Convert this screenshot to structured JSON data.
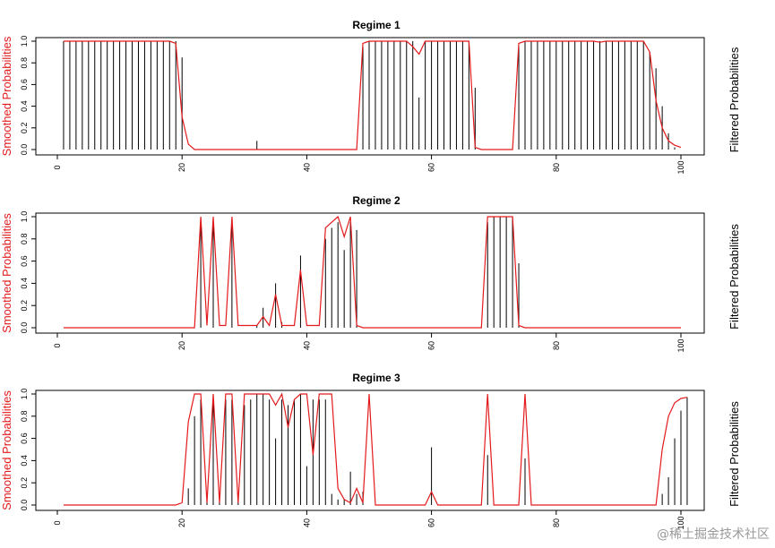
{
  "colors": {
    "smoothed": "#e31a1c",
    "filtered": "#000000",
    "axis": "#000000"
  },
  "watermark": "@稀土掘金技术社区",
  "chart_data": [
    {
      "type": "line",
      "title": "Regime 1",
      "ylabel_left": "Smoothed Probabilities",
      "ylabel_right": "Filtered Probabilities",
      "xlim": [
        0,
        100
      ],
      "ylim": [
        0,
        1
      ],
      "xticks": [
        0,
        20,
        40,
        60,
        80,
        100
      ],
      "yticks": [
        0.0,
        0.2,
        0.4,
        0.6,
        0.8,
        1.0
      ],
      "series": [
        {
          "style": "vertical-lines",
          "color": "#000000",
          "values": [
            1,
            1,
            1,
            1,
            1,
            1,
            1,
            1,
            1,
            1,
            1,
            1,
            1,
            1,
            1,
            1,
            1,
            1,
            1,
            0.85,
            0,
            0,
            0,
            0,
            0,
            0,
            0,
            0,
            0,
            0,
            0,
            0.08,
            0,
            0,
            0,
            0,
            0,
            0,
            0,
            0,
            0,
            0,
            0,
            0,
            0,
            0,
            0,
            0,
            0.95,
            1,
            1,
            1,
            1,
            1,
            1,
            1,
            1,
            0.48,
            1,
            1,
            1,
            1,
            1,
            1,
            1,
            1,
            0.57,
            0,
            0,
            0,
            0,
            0,
            0,
            0.95,
            1,
            1,
            1,
            1,
            1,
            1,
            1,
            1,
            1,
            1,
            1,
            1,
            1,
            1,
            1,
            1,
            1,
            1,
            1,
            1,
            0.9,
            0.75,
            0.4,
            0.15,
            0.02
          ]
        },
        {
          "style": "line",
          "color": "#e31a1c",
          "values": [
            1,
            1,
            1,
            1,
            1,
            1,
            1,
            1,
            1,
            1,
            1,
            1,
            1,
            1,
            1,
            1,
            1,
            1,
            0.98,
            0.3,
            0.05,
            0,
            0,
            0,
            0,
            0,
            0,
            0,
            0,
            0,
            0,
            0,
            0,
            0,
            0,
            0,
            0,
            0,
            0,
            0,
            0,
            0,
            0,
            0,
            0,
            0,
            0,
            0,
            0.98,
            1,
            1,
            1,
            1,
            1,
            1,
            1,
            0.95,
            0.88,
            1,
            1,
            1,
            1,
            1,
            1,
            1,
            1,
            0.02,
            0,
            0,
            0,
            0,
            0,
            0,
            0.98,
            1,
            1,
            1,
            1,
            1,
            1,
            1,
            1,
            1,
            1,
            1,
            1,
            0.99,
            1,
            1,
            1,
            1,
            1,
            1,
            1,
            0.9,
            0.45,
            0.2,
            0.08,
            0.04,
            0.02
          ]
        }
      ]
    },
    {
      "type": "line",
      "title": "Regime 2",
      "ylabel_left": "Smoothed Probabilities",
      "ylabel_right": "Filtered Probabilities",
      "xlim": [
        0,
        100
      ],
      "ylim": [
        0,
        1
      ],
      "xticks": [
        0,
        20,
        40,
        60,
        80,
        100
      ],
      "yticks": [
        0.0,
        0.2,
        0.4,
        0.6,
        0.8,
        1.0
      ],
      "series": [
        {
          "style": "vertical-lines",
          "color": "#000000",
          "values": [
            0,
            0,
            0,
            0,
            0,
            0,
            0,
            0,
            0,
            0,
            0,
            0,
            0,
            0,
            0,
            0,
            0,
            0,
            0,
            0,
            0,
            0,
            0.92,
            0,
            0.93,
            0,
            0,
            0.92,
            0,
            0,
            0,
            0.02,
            0.18,
            0,
            0.4,
            0.05,
            0,
            0,
            0.65,
            0,
            0,
            0,
            0.8,
            0.9,
            0.95,
            0.7,
            0.95,
            0.88,
            0,
            0,
            0,
            0,
            0,
            0,
            0,
            0,
            0,
            0,
            0,
            0,
            0,
            0,
            0,
            0,
            0,
            0,
            0,
            0,
            0.95,
            1,
            1,
            1,
            1,
            0.58,
            0,
            0,
            0,
            0,
            0,
            0,
            0,
            0,
            0,
            0,
            0,
            0,
            0,
            0,
            0,
            0,
            0,
            0,
            0,
            0,
            0,
            0,
            0,
            0,
            0,
            0
          ]
        },
        {
          "style": "line",
          "color": "#e31a1c",
          "values": [
            0,
            0,
            0,
            0,
            0,
            0,
            0,
            0,
            0,
            0,
            0,
            0,
            0,
            0,
            0,
            0,
            0,
            0,
            0,
            0,
            0,
            0,
            1,
            0.02,
            1,
            0.02,
            0.02,
            1,
            0.02,
            0.02,
            0.02,
            0.02,
            0.1,
            0.02,
            0.3,
            0.02,
            0.02,
            0.02,
            0.52,
            0.02,
            0.02,
            0.02,
            0.9,
            0.95,
            1,
            0.82,
            1,
            0.02,
            0,
            0,
            0,
            0,
            0,
            0,
            0,
            0,
            0,
            0,
            0,
            0,
            0,
            0,
            0,
            0,
            0,
            0,
            0,
            0,
            1,
            1,
            1,
            1,
            1,
            0.02,
            0,
            0,
            0,
            0,
            0,
            0,
            0,
            0,
            0,
            0,
            0,
            0,
            0,
            0,
            0,
            0,
            0,
            0,
            0,
            0,
            0,
            0,
            0,
            0,
            0,
            0
          ]
        }
      ]
    },
    {
      "type": "line",
      "title": "Regime 3",
      "ylabel_left": "Smoothed Probabilities",
      "ylabel_right": "Filtered Probabilities",
      "xlim": [
        0,
        100
      ],
      "ylim": [
        0,
        1
      ],
      "xticks": [
        0,
        20,
        40,
        60,
        80,
        100
      ],
      "yticks": [
        0.0,
        0.2,
        0.4,
        0.6,
        0.8,
        1.0
      ],
      "series": [
        {
          "style": "vertical-lines",
          "color": "#000000",
          "values": [
            0,
            0,
            0,
            0,
            0,
            0,
            0,
            0,
            0,
            0,
            0,
            0,
            0,
            0,
            0,
            0,
            0,
            0,
            0,
            0,
            0.15,
            0.8,
            0.95,
            0.05,
            0.95,
            0.1,
            0.95,
            0.95,
            0.1,
            0.9,
            0.95,
            1,
            1,
            0.95,
            0.6,
            0.95,
            0.9,
            0.95,
            1,
            0.35,
            0.95,
            0.95,
            0.95,
            0.1,
            0.05,
            0.05,
            0.3,
            0.1,
            0.12,
            0,
            0,
            0,
            0,
            0,
            0,
            0,
            0,
            0,
            0,
            0.52,
            0,
            0,
            0,
            0,
            0,
            0,
            0,
            0,
            0.45,
            0,
            0,
            0,
            0,
            0,
            0.42,
            0,
            0,
            0,
            0,
            0,
            0,
            0,
            0,
            0,
            0,
            0,
            0,
            0,
            0,
            0,
            0,
            0,
            0,
            0,
            0,
            0,
            0.1,
            0.25,
            0.6,
            0.85,
            0.97
          ]
        },
        {
          "style": "line",
          "color": "#e31a1c",
          "values": [
            0,
            0,
            0,
            0,
            0,
            0,
            0,
            0,
            0,
            0,
            0,
            0,
            0,
            0,
            0,
            0,
            0,
            0,
            0,
            0.02,
            0.75,
            1,
            1,
            0.02,
            1,
            0.02,
            1,
            1,
            0.02,
            1,
            1,
            1,
            1,
            1,
            0.9,
            1,
            0.7,
            0.95,
            1,
            1,
            0.45,
            1,
            1,
            1,
            0.15,
            0.05,
            0.02,
            0.15,
            0.02,
            1,
            0,
            0,
            0,
            0,
            0,
            0,
            0,
            0,
            0,
            0.12,
            0,
            0,
            0,
            0,
            0,
            0,
            0,
            0,
            1,
            0,
            0,
            0,
            0,
            0,
            1,
            0,
            0,
            0,
            0,
            0,
            0,
            0,
            0,
            0,
            0,
            0,
            0,
            0,
            0,
            0,
            0,
            0,
            0,
            0,
            0,
            0,
            0.5,
            0.8,
            0.92,
            0.96,
            0.97
          ]
        }
      ]
    }
  ]
}
